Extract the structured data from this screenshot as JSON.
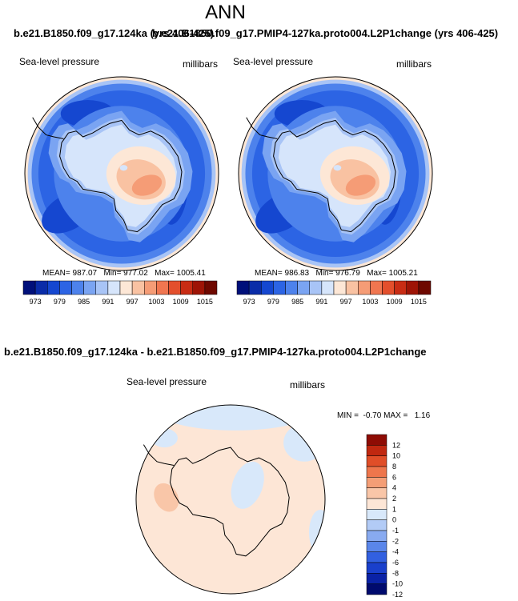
{
  "title": "ANN",
  "panel_titles": {
    "left": "b.e21.B1850.f09_g17.124ka (yrs 406-425)",
    "right": "b.e21.B1850.f09_g17.PMIP4-127ka.proto004.L2P1change (yrs 406-425)",
    "difference": "b.e21.B1850.f09_g17.124ka - b.e21.B1850.f09_g17.PMIP4-127ka.proto004.L2P1change"
  },
  "variable": "Sea-level pressure",
  "units": "millibars",
  "colors": {
    "abs_palette": [
      "#00107a",
      "#0a2ca8",
      "#1547d0",
      "#2c64e4",
      "#4d82ec",
      "#7aa4f2",
      "#a8c4f6",
      "#d6e5fb",
      "#fde7d6",
      "#f9c2a2",
      "#f59c76",
      "#f07650",
      "#e34f2c",
      "#c82c14",
      "#9e1406",
      "#6e0800"
    ],
    "diff_palette": [
      "#000a6e",
      "#0a22a6",
      "#1a40cc",
      "#3260e0",
      "#5a86ea",
      "#88aaf0",
      "#b2cbf6",
      "#d8e8fa",
      "#fde6d6",
      "#f9c6a8",
      "#f49e76",
      "#ee764c",
      "#e04e28",
      "#c02810",
      "#8e0c04"
    ],
    "outline": "#000000"
  },
  "chart_data": [
    {
      "type": "heatmap",
      "projection": "south-polar-stereographic",
      "title": "b.e21.B1850.f09_g17.124ka (yrs 406-425)",
      "variable": "Sea-level pressure",
      "units": "millibars",
      "stats": {
        "mean": "MEAN= 987.07",
        "min": "Min= 977.02",
        "max": "Max= 1005.41"
      },
      "contour_levels": [
        973,
        976,
        979,
        982,
        985,
        988,
        991,
        994,
        997,
        1000,
        1003,
        1006,
        1009,
        1012,
        1015
      ],
      "colorbar_tick_labels": [
        "973",
        "979",
        "985",
        "991",
        "997",
        "1003",
        "1009",
        "1015"
      ],
      "summary_values": {
        "mean": 987.07,
        "min": 977.02,
        "max": 1005.41
      }
    },
    {
      "type": "heatmap",
      "projection": "south-polar-stereographic",
      "title": "b.e21.B1850.f09_g17.PMIP4-127ka.proto004.L2P1change (yrs 406-425)",
      "variable": "Sea-level pressure",
      "units": "millibars",
      "stats": {
        "mean": "MEAN= 986.83",
        "min": "Min= 976.79",
        "max": "Max= 1005.21"
      },
      "contour_levels": [
        973,
        976,
        979,
        982,
        985,
        988,
        991,
        994,
        997,
        1000,
        1003,
        1006,
        1009,
        1012,
        1015
      ],
      "colorbar_tick_labels": [
        "973",
        "979",
        "985",
        "991",
        "997",
        "1003",
        "1009",
        "1015"
      ],
      "summary_values": {
        "mean": 986.83,
        "min": 976.79,
        "max": 1005.21
      }
    },
    {
      "type": "heatmap",
      "projection": "south-polar-stereographic",
      "title": "b.e21.B1850.f09_g17.124ka - b.e21.B1850.f09_g17.PMIP4-127ka.proto004.L2P1change",
      "variable": "Sea-level pressure",
      "units": "millibars",
      "min_max_label": "MIN =  -0.70 MAX =   1.16",
      "summary_values": {
        "min": -0.7,
        "max": 1.16
      },
      "contour_levels": [
        -12,
        -10,
        -8,
        -6,
        -4,
        -2,
        -1,
        0,
        1,
        2,
        4,
        6,
        8,
        10,
        12
      ],
      "colorbar_tick_labels": [
        "12",
        "10",
        "8",
        "6",
        "4",
        "2",
        "1",
        "0",
        "-1",
        "-2",
        "-4",
        "-6",
        "-8",
        "-10",
        "-12"
      ]
    }
  ]
}
